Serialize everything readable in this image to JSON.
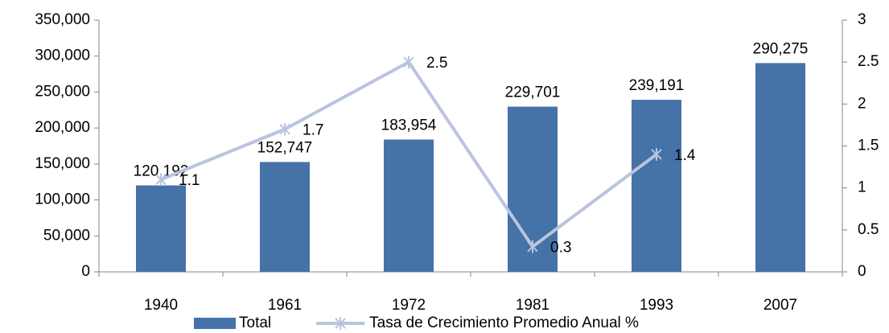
{
  "chart_data": {
    "type": "bar",
    "categories": [
      "1940",
      "1961",
      "1972",
      "1981",
      "1993",
      "2007"
    ],
    "series": [
      {
        "name": "Total",
        "type": "bar",
        "color": "#4572a7",
        "values": [
          120192,
          152747,
          183954,
          229701,
          239191,
          290275
        ],
        "value_labels": [
          "120,192",
          "152,747",
          "183,954",
          "229,701",
          "239,191",
          "290,275"
        ]
      },
      {
        "name": "Tasa de Crecimiento Promedio Anual %",
        "type": "line",
        "axis": "y2",
        "color": "#b9c5de",
        "values": [
          1.1,
          1.7,
          2.5,
          0.3,
          1.4,
          null
        ]
      }
    ],
    "ylim": [
      0,
      350000
    ],
    "yticks": [
      {
        "value": 0,
        "label": "0"
      },
      {
        "value": 50000,
        "label": "50,000"
      },
      {
        "value": 100000,
        "label": "100,000"
      },
      {
        "value": 150000,
        "label": "150,000"
      },
      {
        "value": 200000,
        "label": "200,000"
      },
      {
        "value": 250000,
        "label": "250,000"
      },
      {
        "value": 300000,
        "label": "300,000"
      },
      {
        "value": 350000,
        "label": "350,000"
      }
    ],
    "y2lim": [
      0,
      3
    ],
    "y2ticks": [
      0,
      0.5,
      1,
      1.5,
      2,
      2.5,
      3
    ],
    "grid": false,
    "legend": "bottom"
  }
}
